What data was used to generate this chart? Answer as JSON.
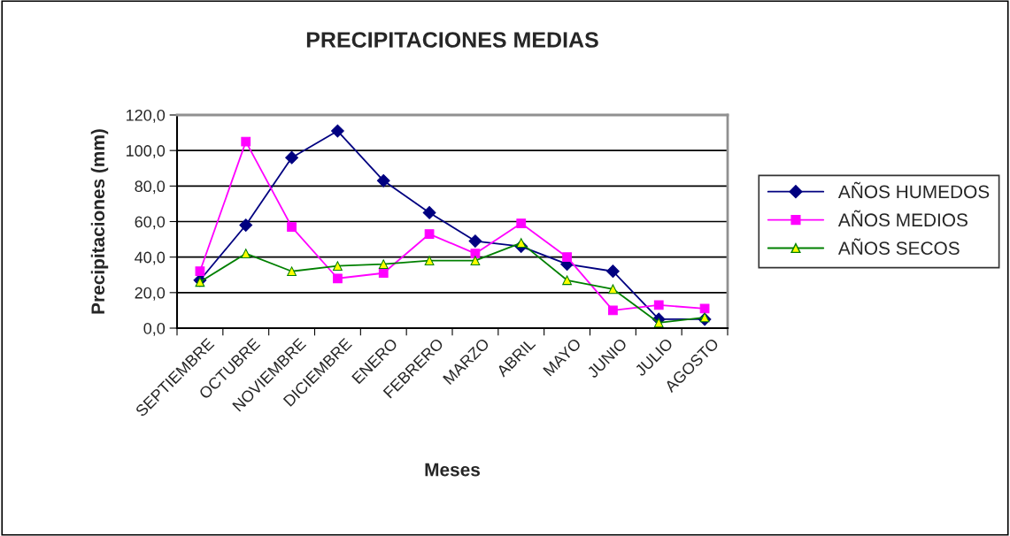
{
  "chart_data": {
    "type": "line",
    "title": "PRECIPITACIONES MEDIAS",
    "xlabel": "Meses",
    "ylabel": "Precipitaciones (mm)",
    "categories": [
      "SEPTIEMBRE",
      "OCTUBRE",
      "NOVIEMBRE",
      "DICIEMBRE",
      "ENERO",
      "FEBRERO",
      "MARZO",
      "ABRIL",
      "MAYO",
      "JUNIO",
      "JULIO",
      "AGOSTO"
    ],
    "series": [
      {
        "name": "AÑOS HUMEDOS",
        "color": "#000080",
        "marker": "diamond",
        "values": [
          27,
          58,
          96,
          111,
          83,
          65,
          49,
          46,
          36,
          32,
          5,
          5
        ]
      },
      {
        "name": "AÑOS MEDIOS",
        "color": "#ff00ff",
        "marker": "square",
        "values": [
          32,
          105,
          57,
          28,
          31,
          53,
          42,
          59,
          40,
          10,
          13,
          11
        ]
      },
      {
        "name": "AÑOS SECOS",
        "color": "#008000",
        "marker": "triangle",
        "values": [
          26,
          42,
          32,
          35,
          36,
          38,
          38,
          48,
          27,
          22,
          3,
          6
        ]
      }
    ],
    "ylim": [
      0,
      120
    ],
    "yticks": [
      {
        "value": 0,
        "label": "0,0"
      },
      {
        "value": 20,
        "label": "20,0"
      },
      {
        "value": 40,
        "label": "40,0"
      },
      {
        "value": 60,
        "label": "60,0"
      },
      {
        "value": 80,
        "label": "80,0"
      },
      {
        "value": 100,
        "label": "100,0"
      },
      {
        "value": 120,
        "label": "120,0"
      }
    ],
    "grid": "y",
    "legend": "right",
    "line_style": "solid"
  }
}
